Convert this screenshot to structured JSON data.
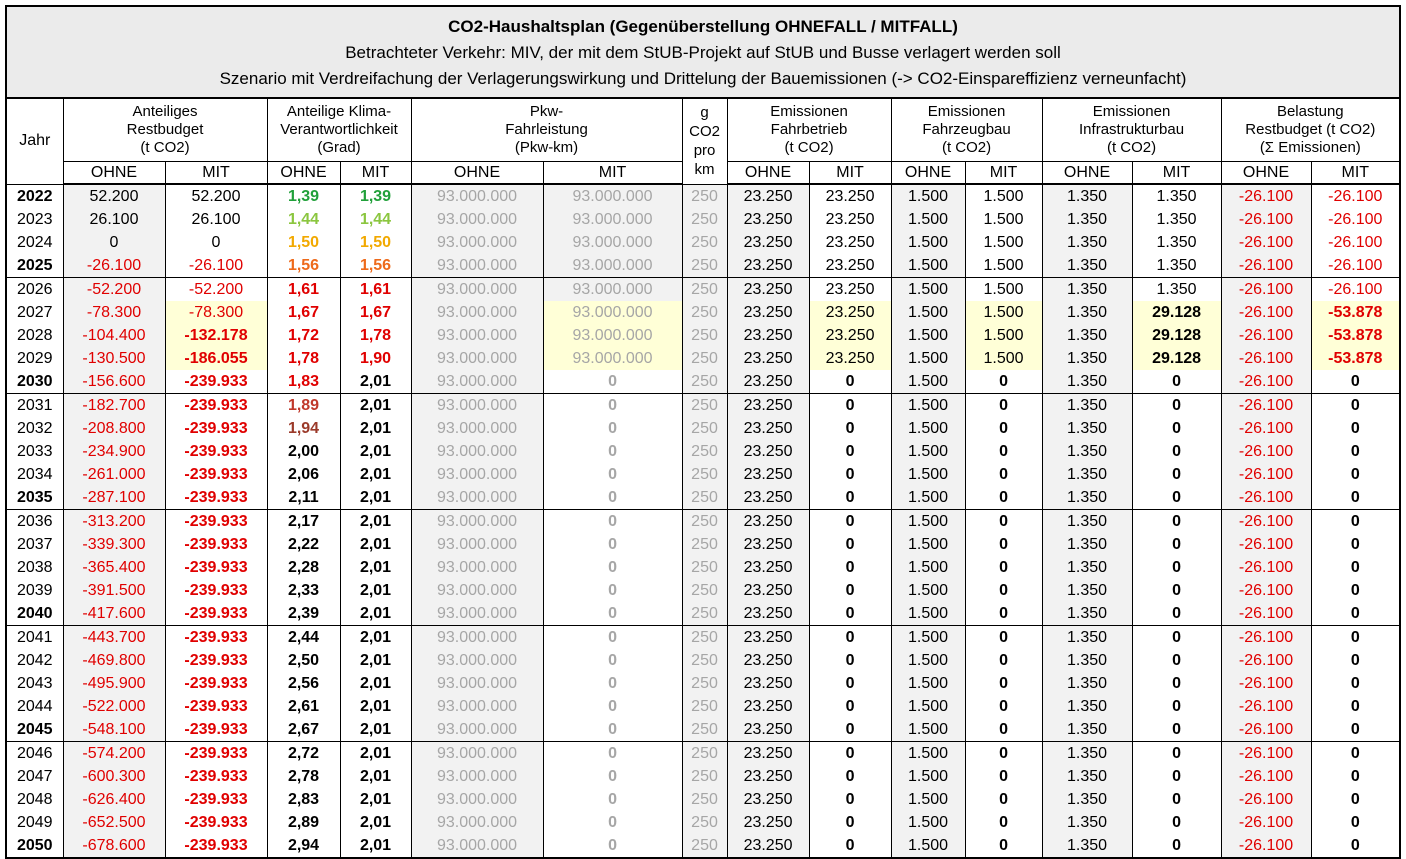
{
  "title": {
    "line1": "CO2-Haushaltsplan (Gegenüberstellung OHNEFALL / MITFALL)",
    "line2": "Betrachteter Verkehr: MIV, der mit dem StUB-Projekt auf StUB und Busse verlagert werden soll",
    "line3": "Szenario mit Verdreifachung der Verlagerungswirkung und Drittelung der Bauemissionen (-> CO2-Einspareffizienz verneunfacht)"
  },
  "headers": {
    "jahr": "Jahr",
    "restbudget": "Anteiliges\nRestbudget\n(t CO2)",
    "klima": "Anteilige Klima-\nVerantwortlichkeit\n(Grad)",
    "pkw": "Pkw-\nFahrleistung\n(Pkw-km)",
    "gco2": "g\nCO2\npro\nkm",
    "fahrbetrieb": "Emissionen\nFahrbetrieb\n(t CO2)",
    "fahrzeugbau": "Emissionen\nFahrzeugbau\n(t CO2)",
    "infrastruktur": "Emissionen\nInfrastrukturbau\n(t CO2)",
    "belastung": "Belastung\nRestbudget (t CO2)\n(Σ Emissionen)",
    "ohne": "OHNE",
    "mit": "MIT"
  },
  "rows": [
    {
      "y": "2022",
      "bold": true,
      "rb_o": "52.200",
      "rb_m": "52.200",
      "k_o": "1,39",
      "k_m": "1,39",
      "kc_o": "c-g1",
      "kc_m": "c-g1",
      "p_o": "93.000.000",
      "p_m": "93.000.000",
      "g": "250",
      "fb_o": "23.250",
      "fb_m": "23.250",
      "fz_o": "1.500",
      "fz_m": "1.500",
      "in_o": "1.350",
      "in_m": "1.350",
      "bl_o": "-26.100",
      "bl_m": "-26.100",
      "state": "normal",
      "grpEnd": false
    },
    {
      "y": "2023",
      "bold": false,
      "rb_o": "26.100",
      "rb_m": "26.100",
      "k_o": "1,44",
      "k_m": "1,44",
      "kc_o": "c-g2",
      "kc_m": "c-g2",
      "p_o": "93.000.000",
      "p_m": "93.000.000",
      "g": "250",
      "fb_o": "23.250",
      "fb_m": "23.250",
      "fz_o": "1.500",
      "fz_m": "1.500",
      "in_o": "1.350",
      "in_m": "1.350",
      "bl_o": "-26.100",
      "bl_m": "-26.100",
      "state": "normal",
      "grpEnd": false
    },
    {
      "y": "2024",
      "bold": false,
      "rb_o": "0",
      "rb_m": "0",
      "k_o": "1,50",
      "k_m": "1,50",
      "kc_o": "c-o1",
      "kc_m": "c-o1",
      "p_o": "93.000.000",
      "p_m": "93.000.000",
      "g": "250",
      "fb_o": "23.250",
      "fb_m": "23.250",
      "fz_o": "1.500",
      "fz_m": "1.500",
      "in_o": "1.350",
      "in_m": "1.350",
      "bl_o": "-26.100",
      "bl_m": "-26.100",
      "state": "normal",
      "grpEnd": false
    },
    {
      "y": "2025",
      "bold": true,
      "rb_o": "-26.100",
      "rb_m": "-26.100",
      "k_o": "1,56",
      "k_m": "1,56",
      "kc_o": "c-o2",
      "kc_m": "c-o2",
      "p_o": "93.000.000",
      "p_m": "93.000.000",
      "g": "250",
      "fb_o": "23.250",
      "fb_m": "23.250",
      "fz_o": "1.500",
      "fz_m": "1.500",
      "in_o": "1.350",
      "in_m": "1.350",
      "bl_o": "-26.100",
      "bl_m": "-26.100",
      "state": "normal",
      "grpEnd": true
    },
    {
      "y": "2026",
      "bold": false,
      "rb_o": "-52.200",
      "rb_m": "-52.200",
      "k_o": "1,61",
      "k_m": "1,61",
      "kc_o": "c-r1",
      "kc_m": "c-r1",
      "p_o": "93.000.000",
      "p_m": "93.000.000",
      "g": "250",
      "fb_o": "23.250",
      "fb_m": "23.250",
      "fz_o": "1.500",
      "fz_m": "1.500",
      "in_o": "1.350",
      "in_m": "1.350",
      "bl_o": "-26.100",
      "bl_m": "-26.100",
      "state": "normal",
      "grpEnd": false
    },
    {
      "y": "2027",
      "bold": false,
      "rb_o": "-78.300",
      "rb_m": "-78.300",
      "k_o": "1,67",
      "k_m": "1,67",
      "kc_o": "c-r1",
      "kc_m": "c-r1",
      "p_o": "93.000.000",
      "p_m": "93.000.000",
      "g": "250",
      "fb_o": "23.250",
      "fb_m": "23.250",
      "fz_o": "1.500",
      "fz_m": "1.500",
      "in_o": "1.350",
      "in_m": "29.128",
      "bl_o": "-26.100",
      "bl_m": "-53.878",
      "state": "build",
      "grpEnd": false
    },
    {
      "y": "2028",
      "bold": false,
      "rb_o": "-104.400",
      "rb_m": "-132.178",
      "k_o": "1,72",
      "k_m": "1,78",
      "kc_o": "c-r1",
      "kc_m": "c-r1",
      "p_o": "93.000.000",
      "p_m": "93.000.000",
      "g": "250",
      "fb_o": "23.250",
      "fb_m": "23.250",
      "fz_o": "1.500",
      "fz_m": "1.500",
      "in_o": "1.350",
      "in_m": "29.128",
      "bl_o": "-26.100",
      "bl_m": "-53.878",
      "state": "build",
      "grpEnd": false
    },
    {
      "y": "2029",
      "bold": false,
      "rb_o": "-130.500",
      "rb_m": "-186.055",
      "k_o": "1,78",
      "k_m": "1,90",
      "kc_o": "c-r1",
      "kc_m": "c-r1",
      "p_o": "93.000.000",
      "p_m": "93.000.000",
      "g": "250",
      "fb_o": "23.250",
      "fb_m": "23.250",
      "fz_o": "1.500",
      "fz_m": "1.500",
      "in_o": "1.350",
      "in_m": "29.128",
      "bl_o": "-26.100",
      "bl_m": "-53.878",
      "state": "build",
      "grpEnd": false
    },
    {
      "y": "2030",
      "bold": true,
      "rb_o": "-156.600",
      "rb_m": "-239.933",
      "k_o": "1,83",
      "k_m": "2,01",
      "kc_o": "c-r1",
      "kc_m": "c-k",
      "p_o": "93.000.000",
      "p_m": "0",
      "g": "250",
      "fb_o": "23.250",
      "fb_m": "0",
      "fz_o": "1.500",
      "fz_m": "0",
      "in_o": "1.350",
      "in_m": "0",
      "bl_o": "-26.100",
      "bl_m": "0",
      "state": "after",
      "grpEnd": true
    },
    {
      "y": "2031",
      "bold": false,
      "rb_o": "-182.700",
      "rb_m": "-239.933",
      "k_o": "1,89",
      "k_m": "2,01",
      "kc_o": "c-r2",
      "kc_m": "c-k",
      "p_o": "93.000.000",
      "p_m": "0",
      "g": "250",
      "fb_o": "23.250",
      "fb_m": "0",
      "fz_o": "1.500",
      "fz_m": "0",
      "in_o": "1.350",
      "in_m": "0",
      "bl_o": "-26.100",
      "bl_m": "0",
      "state": "after",
      "grpEnd": false
    },
    {
      "y": "2032",
      "bold": false,
      "rb_o": "-208.800",
      "rb_m": "-239.933",
      "k_o": "1,94",
      "k_m": "2,01",
      "kc_o": "c-r3",
      "kc_m": "c-k",
      "p_o": "93.000.000",
      "p_m": "0",
      "g": "250",
      "fb_o": "23.250",
      "fb_m": "0",
      "fz_o": "1.500",
      "fz_m": "0",
      "in_o": "1.350",
      "in_m": "0",
      "bl_o": "-26.100",
      "bl_m": "0",
      "state": "after",
      "grpEnd": false
    },
    {
      "y": "2033",
      "bold": false,
      "rb_o": "-234.900",
      "rb_m": "-239.933",
      "k_o": "2,00",
      "k_m": "2,01",
      "kc_o": "c-k",
      "kc_m": "c-k",
      "p_o": "93.000.000",
      "p_m": "0",
      "g": "250",
      "fb_o": "23.250",
      "fb_m": "0",
      "fz_o": "1.500",
      "fz_m": "0",
      "in_o": "1.350",
      "in_m": "0",
      "bl_o": "-26.100",
      "bl_m": "0",
      "state": "after",
      "grpEnd": false
    },
    {
      "y": "2034",
      "bold": false,
      "rb_o": "-261.000",
      "rb_m": "-239.933",
      "k_o": "2,06",
      "k_m": "2,01",
      "kc_o": "c-k",
      "kc_m": "c-k",
      "p_o": "93.000.000",
      "p_m": "0",
      "g": "250",
      "fb_o": "23.250",
      "fb_m": "0",
      "fz_o": "1.500",
      "fz_m": "0",
      "in_o": "1.350",
      "in_m": "0",
      "bl_o": "-26.100",
      "bl_m": "0",
      "state": "after",
      "grpEnd": false
    },
    {
      "y": "2035",
      "bold": true,
      "rb_o": "-287.100",
      "rb_m": "-239.933",
      "k_o": "2,11",
      "k_m": "2,01",
      "kc_o": "c-k",
      "kc_m": "c-k",
      "p_o": "93.000.000",
      "p_m": "0",
      "g": "250",
      "fb_o": "23.250",
      "fb_m": "0",
      "fz_o": "1.500",
      "fz_m": "0",
      "in_o": "1.350",
      "in_m": "0",
      "bl_o": "-26.100",
      "bl_m": "0",
      "state": "after",
      "grpEnd": true
    },
    {
      "y": "2036",
      "bold": false,
      "rb_o": "-313.200",
      "rb_m": "-239.933",
      "k_o": "2,17",
      "k_m": "2,01",
      "kc_o": "c-k",
      "kc_m": "c-k",
      "p_o": "93.000.000",
      "p_m": "0",
      "g": "250",
      "fb_o": "23.250",
      "fb_m": "0",
      "fz_o": "1.500",
      "fz_m": "0",
      "in_o": "1.350",
      "in_m": "0",
      "bl_o": "-26.100",
      "bl_m": "0",
      "state": "after",
      "grpEnd": false
    },
    {
      "y": "2037",
      "bold": false,
      "rb_o": "-339.300",
      "rb_m": "-239.933",
      "k_o": "2,22",
      "k_m": "2,01",
      "kc_o": "c-k",
      "kc_m": "c-k",
      "p_o": "93.000.000",
      "p_m": "0",
      "g": "250",
      "fb_o": "23.250",
      "fb_m": "0",
      "fz_o": "1.500",
      "fz_m": "0",
      "in_o": "1.350",
      "in_m": "0",
      "bl_o": "-26.100",
      "bl_m": "0",
      "state": "after",
      "grpEnd": false
    },
    {
      "y": "2038",
      "bold": false,
      "rb_o": "-365.400",
      "rb_m": "-239.933",
      "k_o": "2,28",
      "k_m": "2,01",
      "kc_o": "c-k",
      "kc_m": "c-k",
      "p_o": "93.000.000",
      "p_m": "0",
      "g": "250",
      "fb_o": "23.250",
      "fb_m": "0",
      "fz_o": "1.500",
      "fz_m": "0",
      "in_o": "1.350",
      "in_m": "0",
      "bl_o": "-26.100",
      "bl_m": "0",
      "state": "after",
      "grpEnd": false
    },
    {
      "y": "2039",
      "bold": false,
      "rb_o": "-391.500",
      "rb_m": "-239.933",
      "k_o": "2,33",
      "k_m": "2,01",
      "kc_o": "c-k",
      "kc_m": "c-k",
      "p_o": "93.000.000",
      "p_m": "0",
      "g": "250",
      "fb_o": "23.250",
      "fb_m": "0",
      "fz_o": "1.500",
      "fz_m": "0",
      "in_o": "1.350",
      "in_m": "0",
      "bl_o": "-26.100",
      "bl_m": "0",
      "state": "after",
      "grpEnd": false
    },
    {
      "y": "2040",
      "bold": true,
      "rb_o": "-417.600",
      "rb_m": "-239.933",
      "k_o": "2,39",
      "k_m": "2,01",
      "kc_o": "c-k",
      "kc_m": "c-k",
      "p_o": "93.000.000",
      "p_m": "0",
      "g": "250",
      "fb_o": "23.250",
      "fb_m": "0",
      "fz_o": "1.500",
      "fz_m": "0",
      "in_o": "1.350",
      "in_m": "0",
      "bl_o": "-26.100",
      "bl_m": "0",
      "state": "after",
      "grpEnd": true
    },
    {
      "y": "2041",
      "bold": false,
      "rb_o": "-443.700",
      "rb_m": "-239.933",
      "k_o": "2,44",
      "k_m": "2,01",
      "kc_o": "c-k",
      "kc_m": "c-k",
      "p_o": "93.000.000",
      "p_m": "0",
      "g": "250",
      "fb_o": "23.250",
      "fb_m": "0",
      "fz_o": "1.500",
      "fz_m": "0",
      "in_o": "1.350",
      "in_m": "0",
      "bl_o": "-26.100",
      "bl_m": "0",
      "state": "after",
      "grpEnd": false
    },
    {
      "y": "2042",
      "bold": false,
      "rb_o": "-469.800",
      "rb_m": "-239.933",
      "k_o": "2,50",
      "k_m": "2,01",
      "kc_o": "c-k",
      "kc_m": "c-k",
      "p_o": "93.000.000",
      "p_m": "0",
      "g": "250",
      "fb_o": "23.250",
      "fb_m": "0",
      "fz_o": "1.500",
      "fz_m": "0",
      "in_o": "1.350",
      "in_m": "0",
      "bl_o": "-26.100",
      "bl_m": "0",
      "state": "after",
      "grpEnd": false
    },
    {
      "y": "2043",
      "bold": false,
      "rb_o": "-495.900",
      "rb_m": "-239.933",
      "k_o": "2,56",
      "k_m": "2,01",
      "kc_o": "c-k",
      "kc_m": "c-k",
      "p_o": "93.000.000",
      "p_m": "0",
      "g": "250",
      "fb_o": "23.250",
      "fb_m": "0",
      "fz_o": "1.500",
      "fz_m": "0",
      "in_o": "1.350",
      "in_m": "0",
      "bl_o": "-26.100",
      "bl_m": "0",
      "state": "after",
      "grpEnd": false
    },
    {
      "y": "2044",
      "bold": false,
      "rb_o": "-522.000",
      "rb_m": "-239.933",
      "k_o": "2,61",
      "k_m": "2,01",
      "kc_o": "c-k",
      "kc_m": "c-k",
      "p_o": "93.000.000",
      "p_m": "0",
      "g": "250",
      "fb_o": "23.250",
      "fb_m": "0",
      "fz_o": "1.500",
      "fz_m": "0",
      "in_o": "1.350",
      "in_m": "0",
      "bl_o": "-26.100",
      "bl_m": "0",
      "state": "after",
      "grpEnd": false
    },
    {
      "y": "2045",
      "bold": true,
      "rb_o": "-548.100",
      "rb_m": "-239.933",
      "k_o": "2,67",
      "k_m": "2,01",
      "kc_o": "c-k",
      "kc_m": "c-k",
      "p_o": "93.000.000",
      "p_m": "0",
      "g": "250",
      "fb_o": "23.250",
      "fb_m": "0",
      "fz_o": "1.500",
      "fz_m": "0",
      "in_o": "1.350",
      "in_m": "0",
      "bl_o": "-26.100",
      "bl_m": "0",
      "state": "after",
      "grpEnd": true
    },
    {
      "y": "2046",
      "bold": false,
      "rb_o": "-574.200",
      "rb_m": "-239.933",
      "k_o": "2,72",
      "k_m": "2,01",
      "kc_o": "c-k",
      "kc_m": "c-k",
      "p_o": "93.000.000",
      "p_m": "0",
      "g": "250",
      "fb_o": "23.250",
      "fb_m": "0",
      "fz_o": "1.500",
      "fz_m": "0",
      "in_o": "1.350",
      "in_m": "0",
      "bl_o": "-26.100",
      "bl_m": "0",
      "state": "after",
      "grpEnd": false
    },
    {
      "y": "2047",
      "bold": false,
      "rb_o": "-600.300",
      "rb_m": "-239.933",
      "k_o": "2,78",
      "k_m": "2,01",
      "kc_o": "c-k",
      "kc_m": "c-k",
      "p_o": "93.000.000",
      "p_m": "0",
      "g": "250",
      "fb_o": "23.250",
      "fb_m": "0",
      "fz_o": "1.500",
      "fz_m": "0",
      "in_o": "1.350",
      "in_m": "0",
      "bl_o": "-26.100",
      "bl_m": "0",
      "state": "after",
      "grpEnd": false
    },
    {
      "y": "2048",
      "bold": false,
      "rb_o": "-626.400",
      "rb_m": "-239.933",
      "k_o": "2,83",
      "k_m": "2,01",
      "kc_o": "c-k",
      "kc_m": "c-k",
      "p_o": "93.000.000",
      "p_m": "0",
      "g": "250",
      "fb_o": "23.250",
      "fb_m": "0",
      "fz_o": "1.500",
      "fz_m": "0",
      "in_o": "1.350",
      "in_m": "0",
      "bl_o": "-26.100",
      "bl_m": "0",
      "state": "after",
      "grpEnd": false
    },
    {
      "y": "2049",
      "bold": false,
      "rb_o": "-652.500",
      "rb_m": "-239.933",
      "k_o": "2,89",
      "k_m": "2,01",
      "kc_o": "c-k",
      "kc_m": "c-k",
      "p_o": "93.000.000",
      "p_m": "0",
      "g": "250",
      "fb_o": "23.250",
      "fb_m": "0",
      "fz_o": "1.500",
      "fz_m": "0",
      "in_o": "1.350",
      "in_m": "0",
      "bl_o": "-26.100",
      "bl_m": "0",
      "state": "after",
      "grpEnd": false
    },
    {
      "y": "2050",
      "bold": true,
      "rb_o": "-678.600",
      "rb_m": "-239.933",
      "k_o": "2,94",
      "k_m": "2,01",
      "kc_o": "c-k",
      "kc_m": "c-k",
      "p_o": "93.000.000",
      "p_m": "0",
      "g": "250",
      "fb_o": "23.250",
      "fb_m": "0",
      "fz_o": "1.500",
      "fz_m": "0",
      "in_o": "1.350",
      "in_m": "0",
      "bl_o": "-26.100",
      "bl_m": "0",
      "state": "after",
      "grpEnd": false
    }
  ]
}
